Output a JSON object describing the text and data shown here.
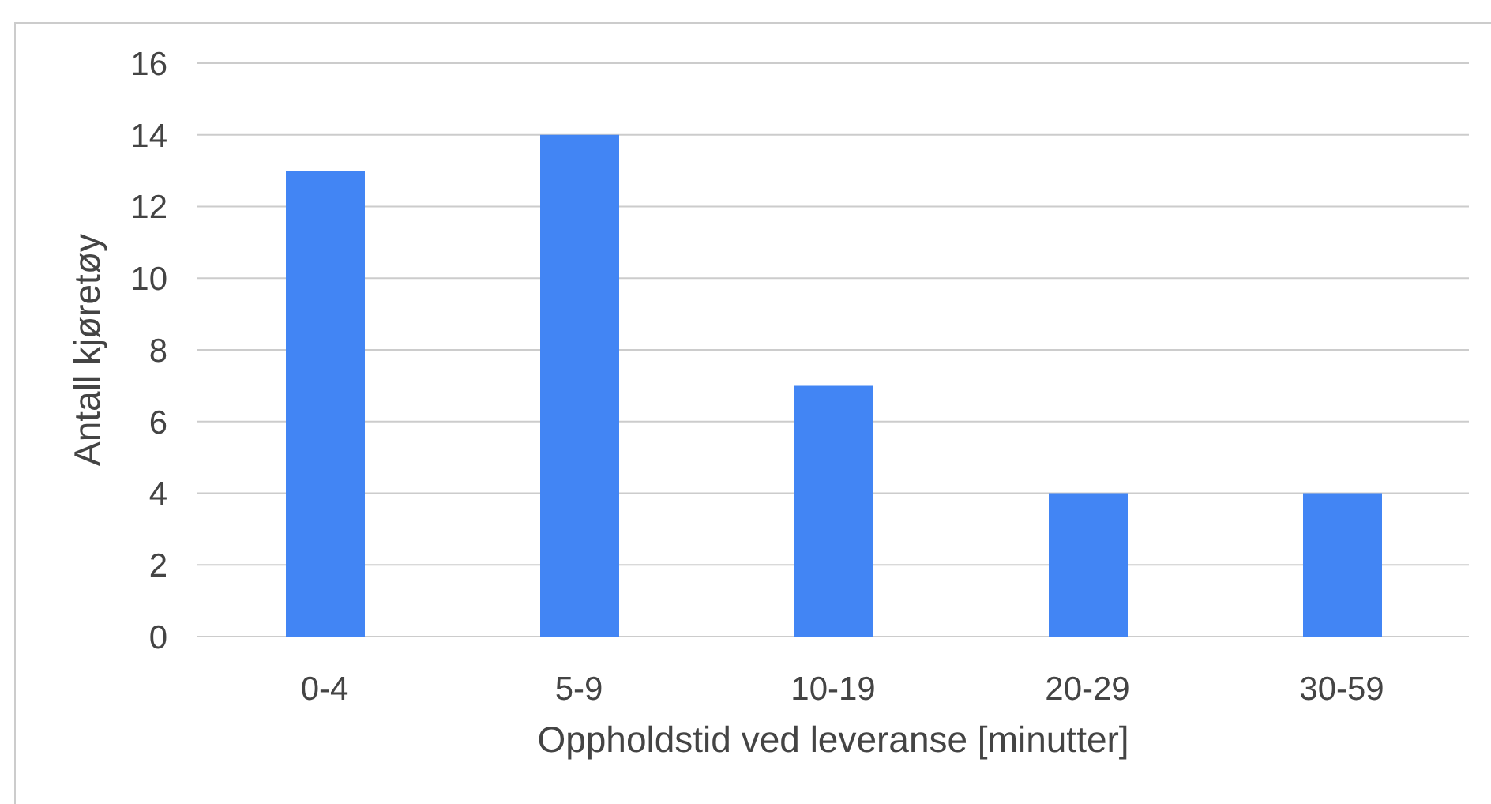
{
  "chart_data": {
    "type": "bar",
    "xlabel": "Oppholdstid ved leveranse [minutter]",
    "ylabel": "Antall kjøretøy",
    "categories": [
      "0-4",
      "5-9",
      "10-19",
      "20-29",
      "30-59"
    ],
    "values": [
      13,
      14,
      7,
      4,
      4
    ],
    "color": "#4285f4",
    "ylim": [
      0,
      16
    ],
    "yticks": [
      0,
      2,
      4,
      6,
      8,
      10,
      12,
      14,
      16
    ],
    "grid": "y"
  }
}
